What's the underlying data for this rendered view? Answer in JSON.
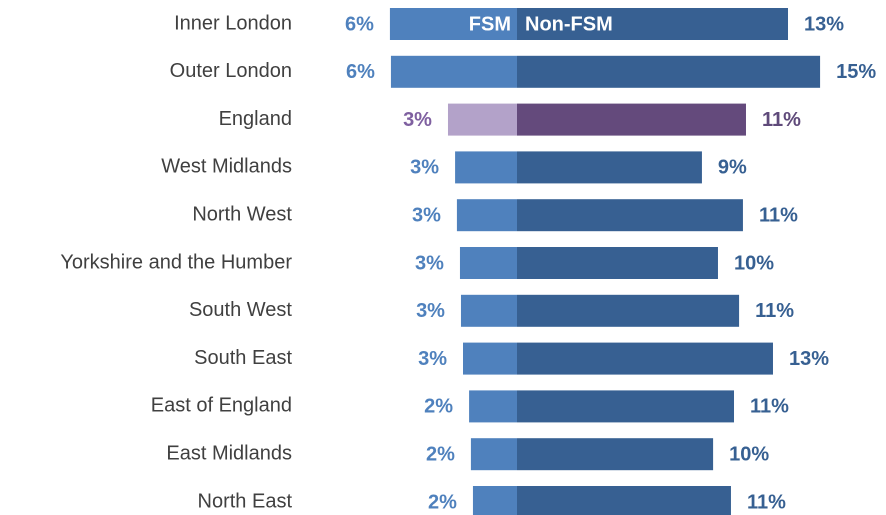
{
  "chart_data": {
    "type": "diverging_bar",
    "categories": [
      "Inner London",
      "Outer London",
      "England",
      "West Midlands",
      "North West",
      "Yorkshire and the Humber",
      "South West",
      "South East",
      "East of England",
      "East Midlands",
      "North East"
    ],
    "highlight": "England",
    "series": [
      {
        "name": "FSM",
        "color": "#4f81bd",
        "label_color": "#4f81bd",
        "highlight_color": "#b3a2c9",
        "highlight_label_color": "#7f60a0",
        "values": [
          6.26,
          6.21,
          3.4,
          3.05,
          2.96,
          2.81,
          2.76,
          2.66,
          2.36,
          2.27,
          2.17
        ],
        "value_labels": [
          "6%",
          "6%",
          "3%",
          "3%",
          "3%",
          "3%",
          "3%",
          "3%",
          "2%",
          "2%",
          "2%"
        ]
      },
      {
        "name": "Non-FSM",
        "color": "#376092",
        "label_color": "#376092",
        "highlight_color": "#644a7c",
        "highlight_label_color": "#5f4a7a",
        "values": [
          13.35,
          14.93,
          11.28,
          9.11,
          11.13,
          9.9,
          10.94,
          12.61,
          10.69,
          9.66,
          10.54
        ],
        "value_labels": [
          "13%",
          "15%",
          "11%",
          "9%",
          "11%",
          "10%",
          "11%",
          "13%",
          "11%",
          "10%",
          "11%"
        ]
      }
    ]
  }
}
